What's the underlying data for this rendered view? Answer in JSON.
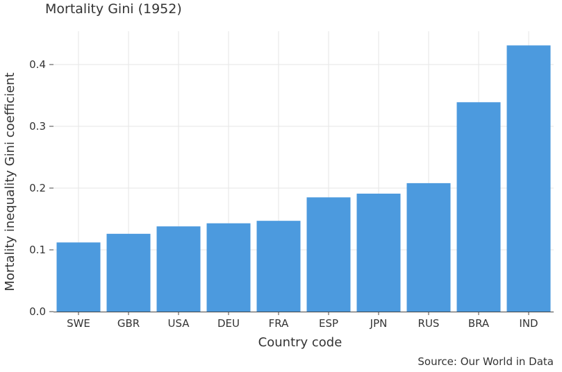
{
  "chart_data": {
    "type": "bar",
    "title": "Mortality Gini (1952)",
    "xlabel": "Country code",
    "ylabel": "Mortality inequality Gini coefficient",
    "categories": [
      "SWE",
      "GBR",
      "USA",
      "DEU",
      "FRA",
      "ESP",
      "JPN",
      "RUS",
      "BRA",
      "IND"
    ],
    "values": [
      0.112,
      0.126,
      0.138,
      0.143,
      0.147,
      0.185,
      0.191,
      0.208,
      0.339,
      0.431
    ],
    "ylim": [
      0,
      0.45
    ],
    "yticks": [
      0.0,
      0.1,
      0.2,
      0.3,
      0.4
    ],
    "ytick_labels": [
      "0.0",
      "0.1",
      "0.2",
      "0.3",
      "0.4"
    ],
    "grid": true,
    "bar_color": "#4c9ade",
    "source": "Source: Our World in Data"
  }
}
